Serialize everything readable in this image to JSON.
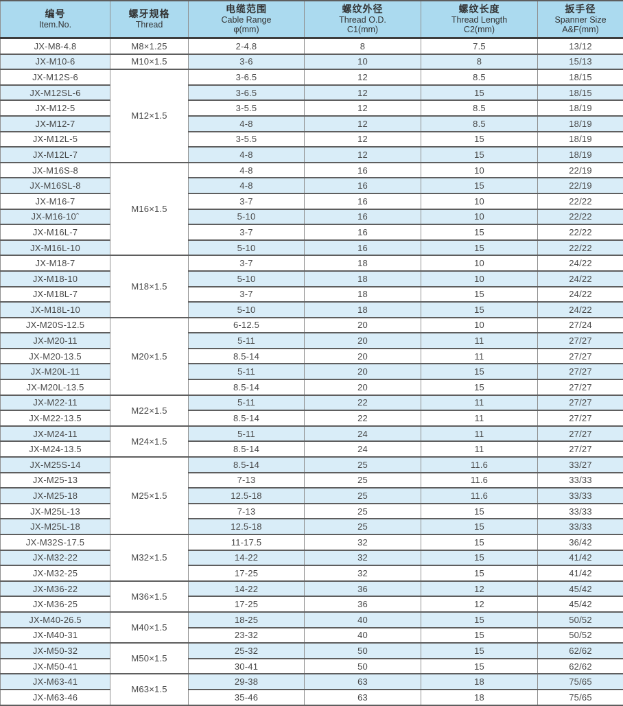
{
  "table": {
    "title": "cable-gland-specification-table",
    "header": {
      "columns": [
        {
          "zh": "编号",
          "en": "Item.No.",
          "sub": ""
        },
        {
          "zh": "螺牙规格",
          "en": "Thread",
          "sub": ""
        },
        {
          "zh": "电缆范围",
          "en": "Cable Range",
          "sub": "φ(mm)"
        },
        {
          "zh": "螺纹外径",
          "en": "Thread O.D.",
          "sub": "C1(mm)"
        },
        {
          "zh": "螺纹长度",
          "en": "Thread Length",
          "sub": "C2(mm)"
        },
        {
          "zh": "扳手径",
          "en": "Spanner Size",
          "sub": "A&F(mm)"
        }
      ]
    },
    "groups": [
      {
        "thread": "M8×1.25",
        "rows": [
          {
            "item": "JX-M8-4.8",
            "range": "2-4.8",
            "od": "8",
            "len": "7.5",
            "spanner": "13/12"
          }
        ]
      },
      {
        "thread": "M10×1.5",
        "rows": [
          {
            "item": "JX-M10-6",
            "range": "3-6",
            "od": "10",
            "len": "8",
            "spanner": "15/13"
          }
        ]
      },
      {
        "thread": "M12×1.5",
        "rows": [
          {
            "item": "JX-M12S-6",
            "range": "3-6.5",
            "od": "12",
            "len": "8.5",
            "spanner": "18/15"
          },
          {
            "item": "JX-M12SL-6",
            "range": "3-6.5",
            "od": "12",
            "len": "15",
            "spanner": "18/15"
          },
          {
            "item": "JX-M12-5",
            "range": "3-5.5",
            "od": "12",
            "len": "8.5",
            "spanner": "18/19"
          },
          {
            "item": "JX-M12-7",
            "range": "4-8",
            "od": "12",
            "len": "8.5",
            "spanner": "18/19"
          },
          {
            "item": "JX-M12L-5",
            "range": "3-5.5",
            "od": "12",
            "len": "15",
            "spanner": "18/19"
          },
          {
            "item": "JX-M12L-7",
            "range": "4-8",
            "od": "12",
            "len": "15",
            "spanner": "18/19"
          }
        ]
      },
      {
        "thread": "M16×1.5",
        "rows": [
          {
            "item": "JX-M16S-8",
            "range": "4-8",
            "od": "16",
            "len": "10",
            "spanner": "22/19"
          },
          {
            "item": "JX-M16SL-8",
            "range": "4-8",
            "od": "16",
            "len": "15",
            "spanner": "22/19"
          },
          {
            "item": "JX-M16-7",
            "range": "3-7",
            "od": "16",
            "len": "10",
            "spanner": "22/22"
          },
          {
            "item": "JX-M16-10ˆ",
            "range": "5-10",
            "od": "16",
            "len": "10",
            "spanner": "22/22"
          },
          {
            "item": "JX-M16L-7",
            "range": "3-7",
            "od": "16",
            "len": "15",
            "spanner": "22/22"
          },
          {
            "item": "JX-M16L-10",
            "range": "5-10",
            "od": "16",
            "len": "15",
            "spanner": "22/22"
          }
        ]
      },
      {
        "thread": "M18×1.5",
        "rows": [
          {
            "item": "JX-M18-7",
            "range": "3-7",
            "od": "18",
            "len": "10",
            "spanner": "24/22"
          },
          {
            "item": "JX-M18-10",
            "range": "5-10",
            "od": "18",
            "len": "10",
            "spanner": "24/22"
          },
          {
            "item": "JX-M18L-7",
            "range": "3-7",
            "od": "18",
            "len": "15",
            "spanner": "24/22"
          },
          {
            "item": "JX-M18L-10",
            "range": "5-10",
            "od": "18",
            "len": "15",
            "spanner": "24/22"
          }
        ]
      },
      {
        "thread": "M20×1.5",
        "rows": [
          {
            "item": "JX-M20S-12.5",
            "range": "6-12.5",
            "od": "20",
            "len": "10",
            "spanner": "27/24"
          },
          {
            "item": "JX-M20-11",
            "range": "5-11",
            "od": "20",
            "len": "11",
            "spanner": "27/27"
          },
          {
            "item": "JX-M20-13.5",
            "range": "8.5-14",
            "od": "20",
            "len": "11",
            "spanner": "27/27"
          },
          {
            "item": "JX-M20L-11",
            "range": "5-11",
            "od": "20",
            "len": "15",
            "spanner": "27/27"
          },
          {
            "item": "JX-M20L-13.5",
            "range": "8.5-14",
            "od": "20",
            "len": "15",
            "spanner": "27/27"
          }
        ]
      },
      {
        "thread": "M22×1.5",
        "rows": [
          {
            "item": "JX-M22-11",
            "range": "5-11",
            "od": "22",
            "len": "11",
            "spanner": "27/27"
          },
          {
            "item": "JX-M22-13.5",
            "range": "8.5-14",
            "od": "22",
            "len": "11",
            "spanner": "27/27"
          }
        ]
      },
      {
        "thread": "M24×1.5",
        "rows": [
          {
            "item": "JX-M24-11",
            "range": "5-11",
            "od": "24",
            "len": "11",
            "spanner": "27/27"
          },
          {
            "item": "JX-M24-13.5",
            "range": "8.5-14",
            "od": "24",
            "len": "11",
            "spanner": "27/27"
          }
        ]
      },
      {
        "thread": "M25×1.5",
        "rows": [
          {
            "item": "JX-M25S-14",
            "range": "8.5-14",
            "od": "25",
            "len": "11.6",
            "spanner": "33/27"
          },
          {
            "item": "JX-M25-13",
            "range": "7-13",
            "od": "25",
            "len": "11.6",
            "spanner": "33/33"
          },
          {
            "item": "JX-M25-18",
            "range": "12.5-18",
            "od": "25",
            "len": "11.6",
            "spanner": "33/33"
          },
          {
            "item": "JX-M25L-13",
            "range": "7-13",
            "od": "25",
            "len": "15",
            "spanner": "33/33"
          },
          {
            "item": "JX-M25L-18",
            "range": "12.5-18",
            "od": "25",
            "len": "15",
            "spanner": "33/33"
          }
        ]
      },
      {
        "thread": "M32×1.5",
        "rows": [
          {
            "item": "JX-M32S-17.5",
            "range": "11-17.5",
            "od": "32",
            "len": "15",
            "spanner": "36/42"
          },
          {
            "item": "JX-M32-22",
            "range": "14-22",
            "od": "32",
            "len": "15",
            "spanner": "41/42"
          },
          {
            "item": "JX-M32-25",
            "range": "17-25",
            "od": "32",
            "len": "15",
            "spanner": "41/42"
          }
        ]
      },
      {
        "thread": "M36×1.5",
        "rows": [
          {
            "item": "JX-M36-22",
            "range": "14-22",
            "od": "36",
            "len": "12",
            "spanner": "45/42"
          },
          {
            "item": "JX-M36-25",
            "range": "17-25",
            "od": "36",
            "len": "12",
            "spanner": "45/42"
          }
        ]
      },
      {
        "thread": "M40×1.5",
        "rows": [
          {
            "item": "JX-M40-26.5",
            "range": "18-25",
            "od": "40",
            "len": "15",
            "spanner": "50/52"
          },
          {
            "item": "JX-M40-31",
            "range": "23-32",
            "od": "40",
            "len": "15",
            "spanner": "50/52"
          }
        ]
      },
      {
        "thread": "M50×1.5",
        "rows": [
          {
            "item": "JX-M50-32",
            "range": "25-32",
            "od": "50",
            "len": "15",
            "spanner": "62/62"
          },
          {
            "item": "JX-M50-41",
            "range": "30-41",
            "od": "50",
            "len": "15",
            "spanner": "62/62"
          }
        ]
      },
      {
        "thread": "M63×1.5",
        "rows": [
          {
            "item": "JX-M63-41",
            "range": "29-38",
            "od": "63",
            "len": "18",
            "spanner": "75/65"
          },
          {
            "item": "JX-M63-46",
            "range": "35-46",
            "od": "63",
            "len": "18",
            "spanner": "75/65"
          }
        ]
      }
    ]
  },
  "colors": {
    "header_bg": "#abdaef",
    "stripe_bg": "#d9edf8",
    "row_bg": "#ffffff",
    "horizontal_border": "#5e5e5e",
    "vertical_border": "#909090",
    "text": "#474747"
  }
}
